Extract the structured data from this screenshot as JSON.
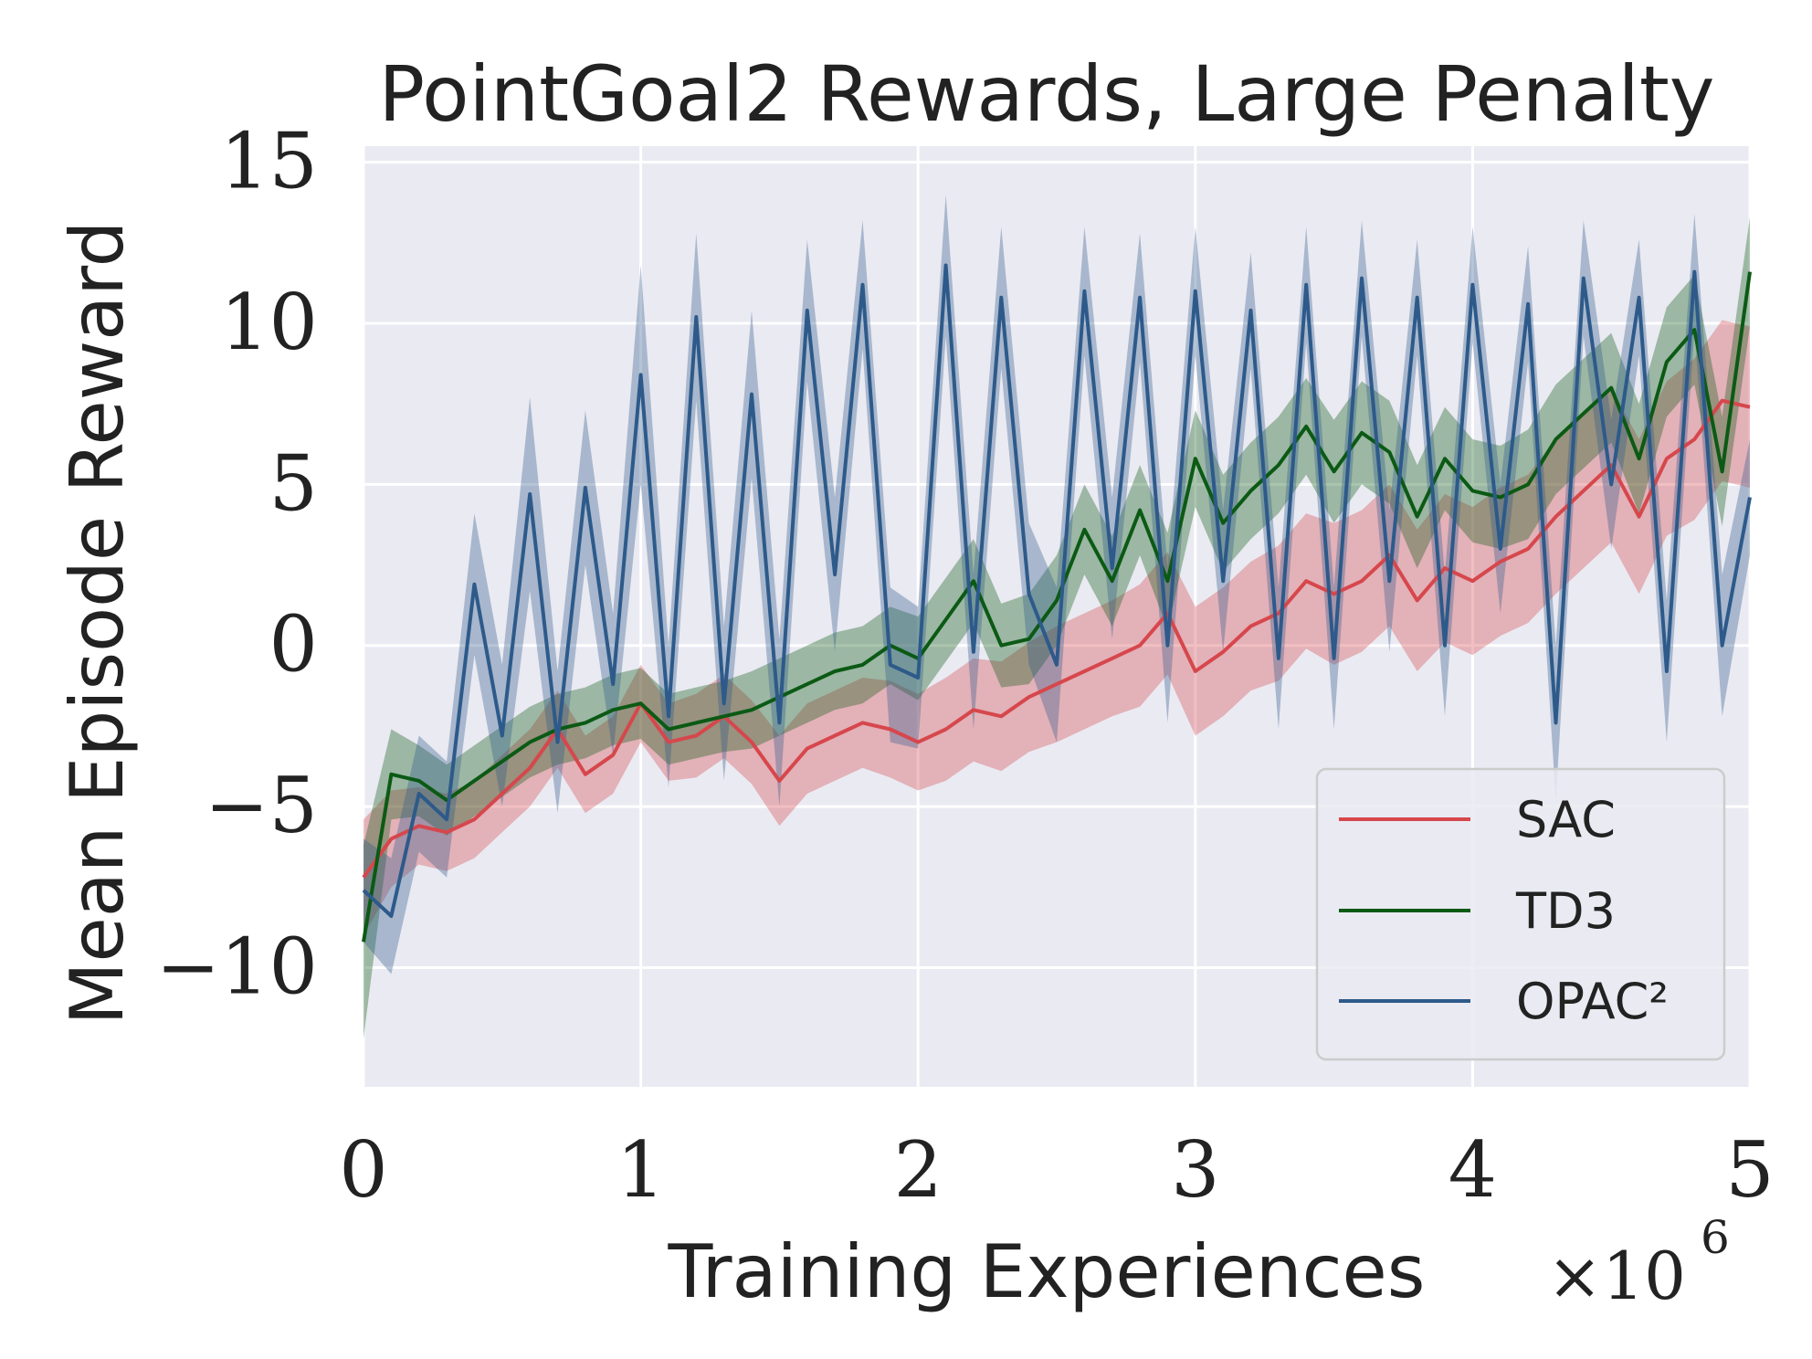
{
  "chart_data": {
    "type": "line",
    "title": "PointGoal2 Rewards, Large Penalty",
    "xlabel": "Training Experiences",
    "ylabel": "Mean Episode Reward",
    "x_multiplier_label": "×10",
    "x_multiplier_exp": "6",
    "xlim": [
      0,
      5
    ],
    "ylim": [
      -13.7,
      15.5
    ],
    "xticks": [
      0,
      1,
      2,
      3,
      4,
      5
    ],
    "xtick_labels": [
      "0",
      "1",
      "2",
      "3",
      "4",
      "5"
    ],
    "yticks": [
      -10,
      -5,
      0,
      5,
      10,
      15
    ],
    "ytick_labels": [
      "−10",
      "−5",
      "0",
      "5",
      "10",
      "15"
    ],
    "grid": true,
    "legend_position": "lower-right",
    "x": [
      0.0,
      0.1,
      0.2,
      0.3,
      0.4,
      0.5,
      0.6,
      0.7,
      0.8,
      0.9,
      1.0,
      1.1,
      1.2,
      1.3,
      1.4,
      1.5,
      1.6,
      1.7,
      1.8,
      1.9,
      2.0,
      2.1,
      2.2,
      2.3,
      2.4,
      2.5,
      2.6,
      2.7,
      2.8,
      2.9,
      3.0,
      3.1,
      3.2,
      3.3,
      3.4,
      3.5,
      3.6,
      3.7,
      3.8,
      3.9,
      4.0,
      4.1,
      4.2,
      4.3,
      4.4,
      4.5,
      4.6,
      4.7,
      4.8,
      4.9,
      5.0
    ],
    "series": [
      {
        "name": "SAC",
        "color": "#d6474c",
        "values": [
          -7.2,
          -6.0,
          -5.6,
          -5.8,
          -5.4,
          -4.6,
          -3.8,
          -2.6,
          -4.0,
          -3.4,
          -1.8,
          -3.0,
          -2.8,
          -2.2,
          -3.0,
          -4.2,
          -3.2,
          -2.8,
          -2.4,
          -2.6,
          -3.0,
          -2.6,
          -2.0,
          -2.2,
          -1.6,
          -1.2,
          -0.8,
          -0.4,
          0.0,
          1.0,
          -0.8,
          -0.2,
          0.6,
          1.0,
          2.0,
          1.6,
          2.0,
          2.8,
          1.4,
          2.4,
          2.0,
          2.6,
          3.0,
          4.0,
          4.8,
          5.6,
          4.0,
          5.8,
          6.4,
          7.6,
          7.4
        ],
        "band": [
          1.8,
          1.5,
          1.2,
          1.2,
          1.2,
          1.2,
          1.2,
          1.2,
          1.2,
          1.2,
          1.2,
          1.2,
          1.3,
          1.3,
          1.3,
          1.4,
          1.4,
          1.4,
          1.4,
          1.5,
          1.5,
          1.6,
          1.6,
          1.7,
          1.7,
          1.8,
          1.8,
          1.8,
          1.9,
          1.9,
          2.0,
          2.0,
          2.0,
          2.1,
          2.1,
          2.2,
          2.2,
          2.2,
          2.2,
          2.3,
          2.3,
          2.3,
          2.3,
          2.4,
          2.4,
          2.4,
          2.4,
          2.4,
          2.5,
          2.5,
          2.5
        ]
      },
      {
        "name": "TD3",
        "color": "#0b5a14",
        "values": [
          -9.2,
          -4.0,
          -4.2,
          -4.8,
          -4.2,
          -3.6,
          -3.0,
          -2.6,
          -2.4,
          -2.0,
          -1.8,
          -2.6,
          -2.4,
          -2.2,
          -2.0,
          -1.6,
          -1.2,
          -0.8,
          -0.6,
          0.0,
          -0.4,
          0.8,
          2.0,
          0.0,
          0.2,
          1.4,
          3.6,
          2.0,
          4.2,
          2.0,
          5.8,
          3.8,
          4.8,
          5.6,
          6.8,
          5.4,
          6.6,
          6.0,
          4.0,
          5.8,
          4.8,
          4.6,
          5.0,
          6.4,
          7.2,
          8.0,
          5.8,
          8.8,
          9.8,
          5.4,
          11.6
        ],
        "band": [
          3.0,
          1.4,
          1.1,
          1.1,
          1.1,
          1.1,
          1.1,
          1.1,
          1.1,
          1.1,
          1.1,
          1.1,
          1.1,
          1.1,
          1.2,
          1.2,
          1.2,
          1.2,
          1.2,
          1.2,
          1.3,
          1.3,
          1.3,
          1.3,
          1.4,
          1.4,
          1.4,
          1.4,
          1.4,
          1.5,
          1.5,
          1.5,
          1.5,
          1.5,
          1.5,
          1.6,
          1.6,
          1.6,
          1.6,
          1.6,
          1.6,
          1.6,
          1.7,
          1.7,
          1.7,
          1.7,
          1.7,
          1.7,
          1.7,
          1.7,
          1.7
        ]
      },
      {
        "name": "OPAC²",
        "color": "#2d5a8a",
        "values": [
          -7.6,
          -8.4,
          -4.6,
          -5.4,
          1.9,
          -2.8,
          4.7,
          -3.0,
          4.9,
          -1.2,
          8.4,
          -2.2,
          10.2,
          -1.8,
          7.8,
          -2.4,
          10.4,
          2.2,
          11.2,
          -0.6,
          -1.0,
          11.8,
          -0.2,
          10.8,
          1.6,
          -0.6,
          11.0,
          2.4,
          10.8,
          0.0,
          11.0,
          2.0,
          10.4,
          -0.4,
          11.2,
          -0.4,
          11.4,
          2.0,
          10.8,
          0.0,
          11.2,
          3.0,
          10.6,
          -2.4,
          11.4,
          5.0,
          10.8,
          -0.8,
          11.6,
          0.0,
          4.6
        ],
        "band": [
          1.6,
          1.8,
          1.8,
          1.8,
          2.2,
          2.2,
          3.0,
          2.2,
          2.4,
          2.2,
          3.4,
          2.2,
          2.6,
          2.4,
          2.6,
          2.6,
          2.2,
          2.4,
          2.0,
          2.4,
          2.2,
          2.2,
          2.4,
          2.2,
          2.2,
          2.4,
          2.0,
          2.2,
          2.0,
          2.4,
          2.0,
          2.2,
          1.8,
          2.2,
          1.8,
          2.2,
          1.8,
          2.2,
          1.8,
          2.2,
          1.8,
          2.0,
          1.8,
          2.4,
          1.8,
          2.0,
          1.8,
          2.2,
          1.8,
          2.2,
          1.8
        ]
      }
    ]
  }
}
